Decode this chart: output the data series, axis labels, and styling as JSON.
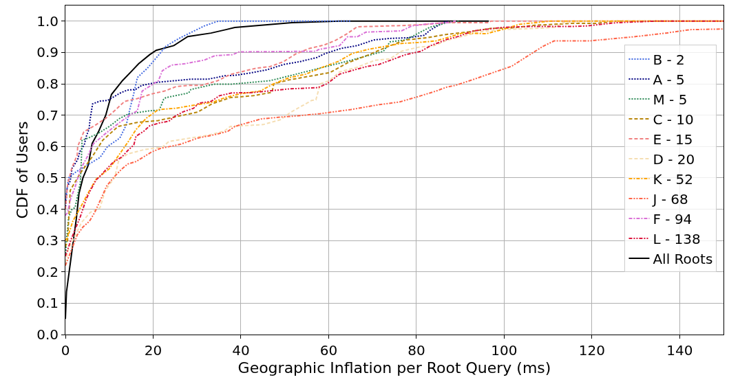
{
  "chart_data": {
    "type": "line",
    "xlabel": "Geographic Inflation per Root Query (ms)",
    "ylabel": "CDF of Users",
    "xlim": [
      0,
      150
    ],
    "xticks": [
      0,
      20,
      40,
      60,
      80,
      100,
      120,
      140
    ],
    "ylim": [
      0,
      1.05
    ],
    "yticks": [
      {
        "value": 0,
        "label": "0.0"
      },
      {
        "value": 0.1,
        "label": "0.1"
      },
      {
        "value": 0.2,
        "label": "0.2"
      },
      {
        "value": 0.3,
        "label": "0.3"
      },
      {
        "value": 0.4,
        "label": "0.4"
      },
      {
        "value": 0.5,
        "label": "0.5"
      },
      {
        "value": 0.6,
        "label": "0.6"
      },
      {
        "value": 0.7,
        "label": "0.7"
      },
      {
        "value": 0.8,
        "label": "0.8"
      },
      {
        "value": 0.9,
        "label": "0.9"
      },
      {
        "value": 1.0,
        "label": "1.0"
      }
    ],
    "grid": true,
    "legend": "top right",
    "series": [
      {
        "name": "B - 2",
        "color": "#4169e1",
        "line_style": "dotted",
        "x": [
          0,
          0.75,
          2.5,
          7.9,
          9.6,
          12.4,
          13.9,
          14.7,
          15.6,
          16.4,
          18.7,
          20.9,
          22.9,
          25.9,
          31.7,
          34.8,
          65
        ],
        "values": [
          0.43,
          0.5,
          0.52,
          0.565,
          0.6,
          0.627,
          0.67,
          0.72,
          0.77,
          0.82,
          0.85,
          0.886,
          0.92,
          0.945,
          0.985,
          1.0,
          1.0
        ]
      },
      {
        "name": "A - 5",
        "color": "#000080",
        "line_style": "dotted",
        "x": [
          0,
          0.4,
          1.1,
          1.5,
          2.8,
          3.3,
          4.3,
          4.7,
          5.4,
          5.6,
          5.9,
          6.2,
          7.9,
          9.6,
          12.4,
          14.1,
          16,
          17.4,
          19.2,
          21,
          24.9,
          28.7,
          32.5,
          34.4,
          36.3,
          38.6,
          42.3,
          46,
          49.8,
          53.5,
          57.3,
          59.1,
          62.8,
          66.5,
          70.3,
          74,
          78,
          81.8,
          83,
          86,
          87
        ],
        "values": [
          0.4,
          0.47,
          0.49,
          0.53,
          0.558,
          0.584,
          0.605,
          0.63,
          0.656,
          0.684,
          0.71,
          0.736,
          0.745,
          0.747,
          0.77,
          0.78,
          0.782,
          0.795,
          0.8,
          0.805,
          0.81,
          0.815,
          0.815,
          0.82,
          0.826,
          0.827,
          0.835,
          0.845,
          0.862,
          0.871,
          0.884,
          0.896,
          0.913,
          0.922,
          0.94,
          0.945,
          0.947,
          0.955,
          0.97,
          0.995,
          1.0
        ]
      },
      {
        "name": "M - 5",
        "color": "#2e8b57",
        "line_style": "dotted",
        "x": [
          0,
          0.3,
          0.75,
          1.5,
          2.2,
          3.4,
          3.6,
          3.8,
          5.2,
          7.5,
          10,
          12.4,
          14.4,
          19.2,
          21.4,
          22.4,
          22.9,
          28.1,
          28.6,
          34,
          37.9,
          46.6,
          51.5,
          57.6,
          64,
          72.5,
          74,
          77.5,
          83,
          87,
          90
        ],
        "values": [
          0.25,
          0.31,
          0.375,
          0.4,
          0.405,
          0.485,
          0.544,
          0.62,
          0.627,
          0.642,
          0.664,
          0.69,
          0.704,
          0.714,
          0.716,
          0.751,
          0.756,
          0.771,
          0.782,
          0.799,
          0.799,
          0.81,
          0.827,
          0.849,
          0.871,
          0.904,
          0.934,
          0.94,
          0.98,
          0.995,
          1.0
        ]
      },
      {
        "name": "C - 10",
        "color": "#b8860b",
        "line_style": "dashed",
        "x": [
          0,
          0.5,
          1.1,
          3.4,
          6.0,
          8.5,
          12,
          16.4,
          21.2,
          30.2,
          33.4,
          37.6,
          42.8,
          47.1,
          47.5,
          50.8,
          60.3,
          64.3,
          69,
          72.8,
          77.5,
          82.3,
          87,
          92,
          97,
          101.5,
          107,
          111.4,
          115.5,
          121,
          125.4,
          150
        ],
        "values": [
          0.28,
          0.3,
          0.46,
          0.515,
          0.565,
          0.62,
          0.664,
          0.677,
          0.683,
          0.71,
          0.736,
          0.756,
          0.762,
          0.773,
          0.8,
          0.812,
          0.836,
          0.867,
          0.892,
          0.915,
          0.94,
          0.947,
          0.958,
          0.966,
          0.977,
          0.978,
          0.987,
          0.99,
          0.993,
          0.993,
          1.0,
          1.0
        ]
      },
      {
        "name": "E - 15",
        "color": "#f08080",
        "line_style": "dashed",
        "x": [
          0,
          0.5,
          1.5,
          2.7,
          2.8,
          4.2,
          6.7,
          9.2,
          11.2,
          13.5,
          16.4,
          19.7,
          22.6,
          25.2,
          28.1,
          31,
          34.7,
          37.6,
          43.5,
          46.6,
          49.6,
          52.6,
          55.6,
          59,
          61.6,
          64,
          66.5,
          76.6,
          81.5,
          86.5,
          96.5,
          97,
          150
        ],
        "values": [
          0.4,
          0.48,
          0.533,
          0.573,
          0.6,
          0.647,
          0.667,
          0.69,
          0.714,
          0.744,
          0.753,
          0.768,
          0.777,
          0.791,
          0.795,
          0.795,
          0.81,
          0.83,
          0.85,
          0.855,
          0.87,
          0.896,
          0.913,
          0.924,
          0.939,
          0.958,
          0.982,
          0.986,
          0.989,
          0.995,
          0.995,
          1.0,
          1.0
        ]
      },
      {
        "name": "D - 20",
        "color": "#f5deb3",
        "line_style": "dashed",
        "x": [
          0,
          0.75,
          2,
          3.7,
          5.7,
          7.9,
          9,
          10,
          11.2,
          12.2,
          14.2,
          17.9,
          22.1,
          23.6,
          27.2,
          32.2,
          36.2,
          37.6,
          45.1,
          49.1,
          51.1,
          53.1,
          56.1,
          57.1,
          58.1,
          60.1,
          62.5,
          66.5,
          70.5,
          74,
          76.6,
          80.5,
          84.1,
          87,
          89.5,
          94.5,
          99.5,
          107,
          111.4,
          113.4,
          119.4,
          150
        ],
        "values": [
          0.23,
          0.275,
          0.31,
          0.358,
          0.39,
          0.405,
          0.456,
          0.478,
          0.5,
          0.558,
          0.576,
          0.59,
          0.598,
          0.616,
          0.624,
          0.635,
          0.649,
          0.664,
          0.67,
          0.686,
          0.707,
          0.723,
          0.747,
          0.749,
          0.8,
          0.81,
          0.838,
          0.853,
          0.875,
          0.88,
          0.904,
          0.917,
          0.922,
          0.939,
          0.948,
          0.966,
          0.973,
          0.977,
          0.98,
          0.995,
          1.0,
          1.0
        ]
      },
      {
        "name": "K - 52",
        "color": "#ffa500",
        "line_style": "dashdot",
        "x": [
          0,
          0.5,
          1.7,
          3.6,
          5.2,
          7,
          10,
          12.2,
          14.2,
          16.1,
          18.4,
          21.2,
          25.2,
          28.9,
          33.7,
          36.4,
          40.1,
          44.4,
          47.4,
          51.1,
          54.8,
          58.6,
          62.1,
          65.4,
          69,
          73,
          76.6,
          80.5,
          84.5,
          90.5,
          96,
          99.5,
          103.5,
          110.4,
          150
        ],
        "values": [
          0.3,
          0.31,
          0.362,
          0.41,
          0.452,
          0.496,
          0.529,
          0.573,
          0.613,
          0.654,
          0.69,
          0.718,
          0.722,
          0.731,
          0.742,
          0.756,
          0.769,
          0.777,
          0.8,
          0.82,
          0.831,
          0.853,
          0.871,
          0.897,
          0.91,
          0.92,
          0.929,
          0.932,
          0.937,
          0.962,
          0.96,
          0.973,
          0.99,
          1.0,
          1.0
        ]
      },
      {
        "name": "J - 68",
        "color": "#ff6347",
        "line_style": "dashdotdot",
        "x": [
          0,
          2.7,
          4,
          5.5,
          6.7,
          8.5,
          9.4,
          10.9,
          12.7,
          14.2,
          16.1,
          18.2,
          19.7,
          21.7,
          26.2,
          30.2,
          34.1,
          37.1,
          38.6,
          44.6,
          49.1,
          53.1,
          58.1,
          65.1,
          71.6,
          76.1,
          80.1,
          84.5,
          87,
          88.9,
          93.2,
          97.5,
          101.7,
          105.5,
          108.9,
          111.4,
          119.4,
          129.4,
          136.9,
          142.4,
          150
        ],
        "values": [
          0.22,
          0.318,
          0.343,
          0.362,
          0.39,
          0.445,
          0.474,
          0.5,
          0.526,
          0.544,
          0.552,
          0.57,
          0.583,
          0.594,
          0.607,
          0.627,
          0.638,
          0.649,
          0.664,
          0.688,
          0.694,
          0.698,
          0.705,
          0.718,
          0.734,
          0.742,
          0.758,
          0.777,
          0.79,
          0.795,
          0.815,
          0.836,
          0.856,
          0.89,
          0.92,
          0.937,
          0.937,
          0.95,
          0.962,
          0.973,
          0.975
        ]
      },
      {
        "name": "F - 94",
        "color": "#da70d6",
        "line_style": "dashdot",
        "x": [
          0,
          0.5,
          1.2,
          2.2,
          3.4,
          4.9,
          6.4,
          9.2,
          12.2,
          14.7,
          16.4,
          17.5,
          21.2,
          22.1,
          24.2,
          27.2,
          31.7,
          34.1,
          38.1,
          39.6,
          57.1,
          57.6,
          62.5,
          64.3,
          66.5,
          68.5,
          76.6,
          79,
          82.5,
          87,
          89
        ],
        "values": [
          0.38,
          0.39,
          0.434,
          0.47,
          0.526,
          0.565,
          0.609,
          0.642,
          0.675,
          0.7,
          0.714,
          0.777,
          0.81,
          0.842,
          0.86,
          0.864,
          0.876,
          0.89,
          0.893,
          0.902,
          0.904,
          0.909,
          0.922,
          0.95,
          0.95,
          0.965,
          0.969,
          0.985,
          0.991,
          0.995,
          1.0
        ]
      },
      {
        "name": "L - 138",
        "color": "#dc143c",
        "line_style": "dashdotdot",
        "x": [
          0,
          0.5,
          1.2,
          3.4,
          4.8,
          5.7,
          7,
          8.2,
          9.7,
          10.9,
          12.9,
          14.2,
          15.6,
          16.1,
          17.9,
          19.2,
          21.4,
          23.6,
          25,
          26.9,
          29.2,
          30.4,
          33.2,
          35.1,
          37.9,
          42.6,
          51.1,
          57.6,
          59.6,
          62.5,
          67,
          69,
          71.5,
          75,
          77.5,
          81.1,
          83.3,
          87,
          89.5,
          93,
          99.5,
          106,
          115.5,
          119,
          125.4,
          134.4,
          150
        ],
        "values": [
          0.25,
          0.27,
          0.3,
          0.376,
          0.434,
          0.46,
          0.493,
          0.51,
          0.533,
          0.55,
          0.567,
          0.587,
          0.605,
          0.633,
          0.649,
          0.666,
          0.675,
          0.681,
          0.697,
          0.711,
          0.722,
          0.738,
          0.744,
          0.762,
          0.771,
          0.772,
          0.784,
          0.788,
          0.8,
          0.831,
          0.849,
          0.856,
          0.862,
          0.88,
          0.893,
          0.904,
          0.922,
          0.942,
          0.951,
          0.969,
          0.98,
          0.983,
          0.983,
          0.985,
          0.995,
          1.0,
          1.0
        ]
      },
      {
        "name": "All Roots",
        "color": "#000000",
        "line_style": "solid",
        "x": [
          0,
          0.25,
          1.5,
          2.5,
          3.1,
          4.0,
          5.2,
          6.1,
          7.5,
          9.2,
          10.5,
          13,
          15.2,
          16.7,
          19.2,
          20.7,
          24.7,
          27.9,
          33.2,
          36.6,
          38.6,
          51.6,
          62.5,
          96.5
        ],
        "values": [
          0.05,
          0.136,
          0.267,
          0.37,
          0.45,
          0.5,
          0.54,
          0.61,
          0.646,
          0.7,
          0.766,
          0.81,
          0.842,
          0.864,
          0.893,
          0.907,
          0.922,
          0.951,
          0.962,
          0.973,
          0.98,
          0.995,
          1.0,
          1.0
        ]
      }
    ]
  }
}
